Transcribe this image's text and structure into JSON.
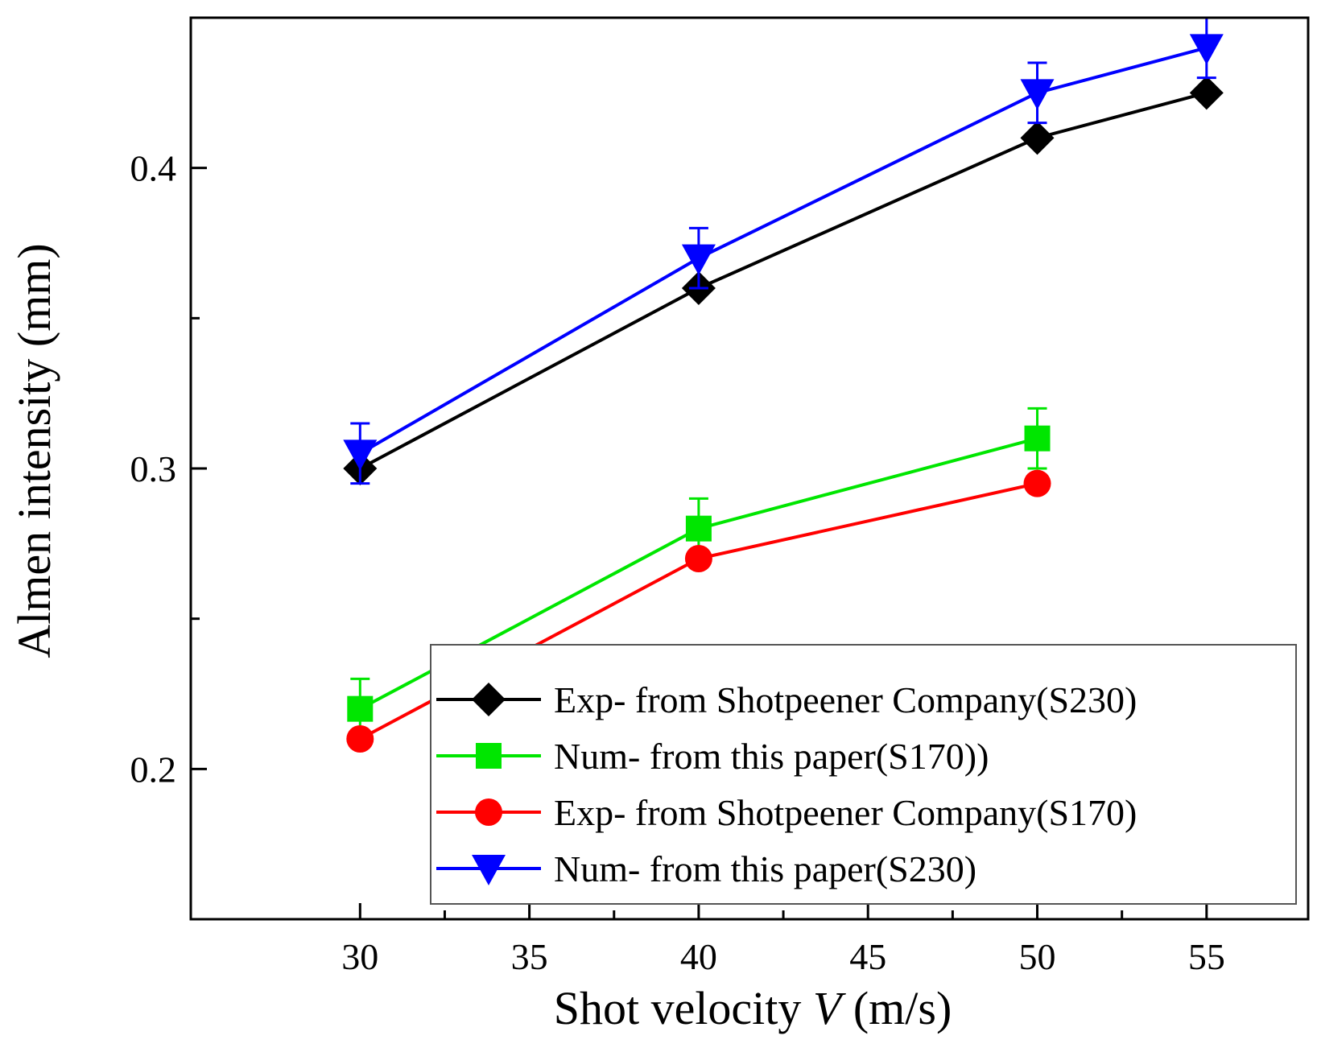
{
  "chart_data": {
    "type": "line",
    "title": "",
    "xlabel_prefix": "Shot velocity ",
    "xlabel_var": "V",
    "xlabel_suffix": " (m/s)",
    "ylabel": "Almen intensity (mm)",
    "xlim": [
      25,
      58
    ],
    "ylim": [
      0.15,
      0.45
    ],
    "xticks": [
      30,
      35,
      40,
      45,
      50,
      55
    ],
    "xtick_labels": [
      "30",
      "35",
      "40",
      "45",
      "50",
      "55"
    ],
    "xminor": [
      32.5,
      37.5,
      42.5,
      47.5,
      52.5
    ],
    "yticks": [
      0.2,
      0.3,
      0.4
    ],
    "ytick_labels": [
      "0.2",
      "0.3",
      "0.4"
    ],
    "yminor": [
      0.25,
      0.35
    ],
    "legend_position": "bottom-right",
    "series": [
      {
        "name": "Exp- from Shotpeener Company(S230)",
        "color": "#000000",
        "marker": "diamond",
        "x": [
          30,
          40,
          50,
          55
        ],
        "y": [
          0.3,
          0.36,
          0.41,
          0.425
        ],
        "err": null
      },
      {
        "name": "Num- from this paper(S170))",
        "color": "#00e600",
        "marker": "square",
        "x": [
          30,
          40,
          50
        ],
        "y": [
          0.22,
          0.28,
          0.31
        ],
        "err": [
          0.01,
          0.01,
          0.01
        ]
      },
      {
        "name": "Exp- from Shotpeener Company(S170)",
        "color": "#ff0000",
        "marker": "circle",
        "x": [
          30,
          40,
          50
        ],
        "y": [
          0.21,
          0.27,
          0.295
        ],
        "err": null
      },
      {
        "name": "Num- from this paper(S230)",
        "color": "#0000ff",
        "marker": "triangle-down",
        "x": [
          30,
          40,
          50,
          55
        ],
        "y": [
          0.305,
          0.37,
          0.425,
          0.44
        ],
        "err": [
          0.01,
          0.01,
          0.01,
          0.01
        ]
      }
    ]
  }
}
